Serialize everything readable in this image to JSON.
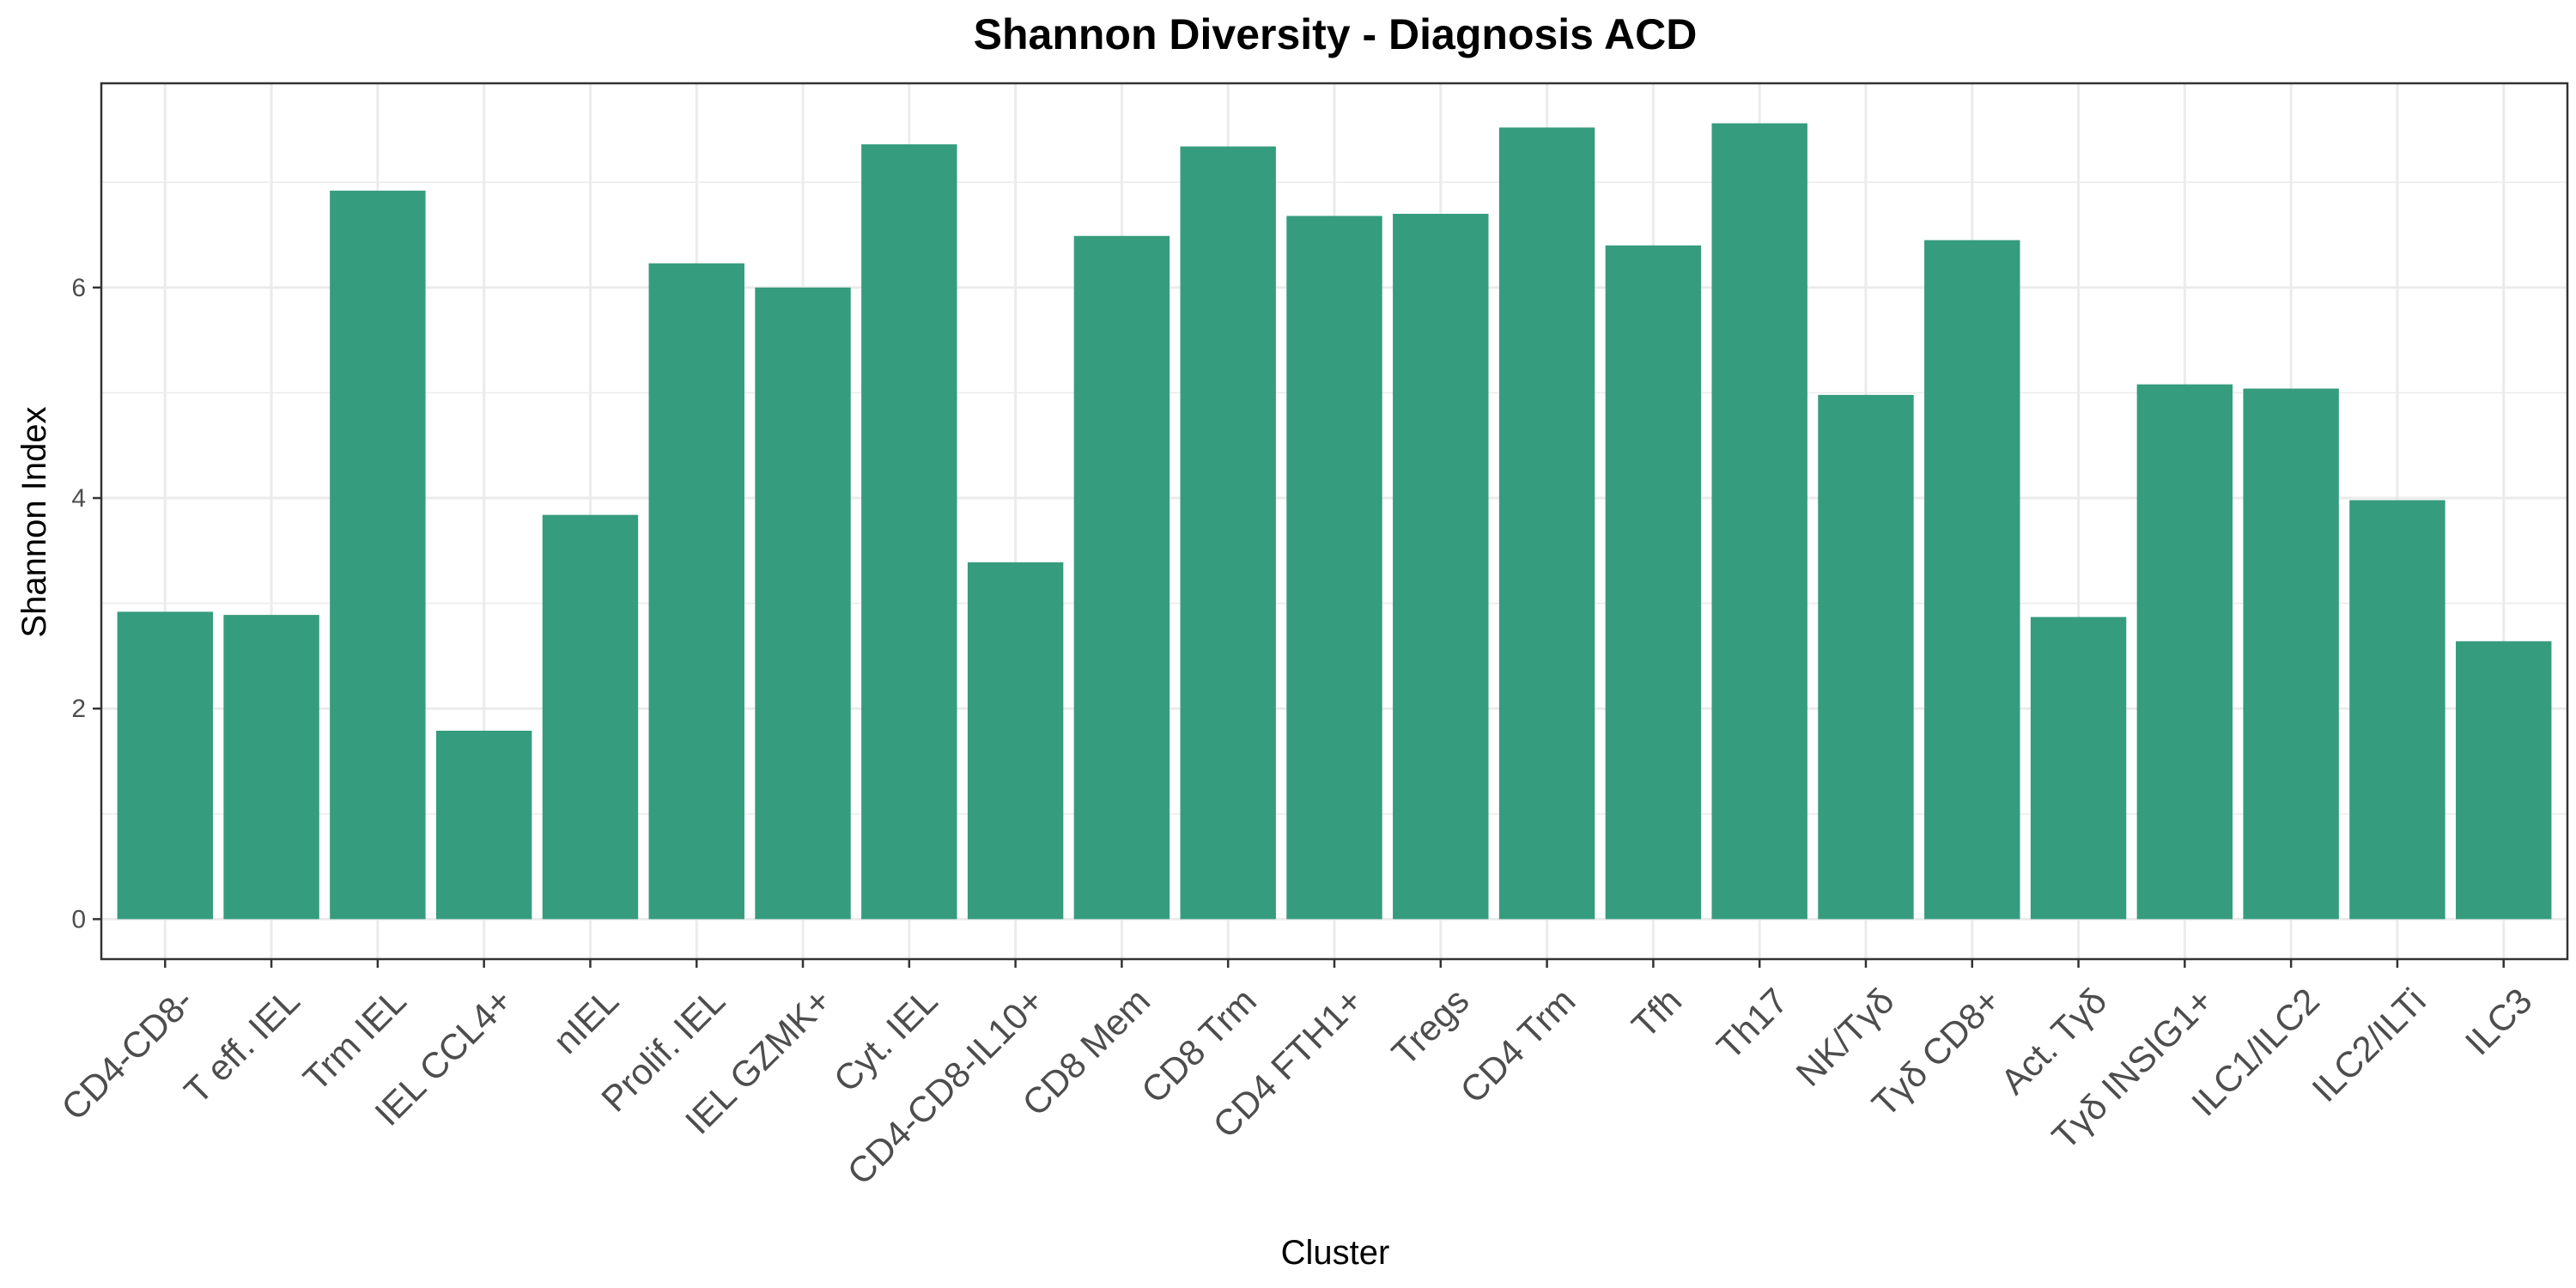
{
  "chart_data": {
    "type": "bar",
    "title": "Shannon Diversity - Diagnosis ACD",
    "xlabel": "Cluster",
    "ylabel": "Shannon Index",
    "categories": [
      "CD4-CD8-",
      "T eff. IEL",
      "Trm IEL",
      "IEL CCL4+",
      "nIEL",
      "Prolif. IEL",
      "IEL GZMK+",
      "Cyt. IEL",
      "CD4-CD8-IL10+",
      "CD8 Mem",
      "CD8 Trm",
      "CD4 FTH1+",
      "Tregs",
      "CD4 Trm",
      "Tfh",
      "Th17",
      "NK/Tγδ",
      "Tγδ CD8+",
      "Act. Tγδ",
      "Tγδ INSIG1+",
      "ILC1/ILC2",
      "ILC2/ILTi",
      "ILC3"
    ],
    "values": [
      2.92,
      2.89,
      6.92,
      1.79,
      3.84,
      6.23,
      6.0,
      7.36,
      3.39,
      6.49,
      7.34,
      6.68,
      6.7,
      7.52,
      6.4,
      7.56,
      4.98,
      6.45,
      2.87,
      5.08,
      5.04,
      3.98,
      2.64
    ],
    "yticks": [
      0,
      2,
      4,
      6
    ],
    "ylim": [
      -0.38,
      7.94
    ],
    "bar_color": "#369c7e",
    "grid": true,
    "legend": "none"
  }
}
